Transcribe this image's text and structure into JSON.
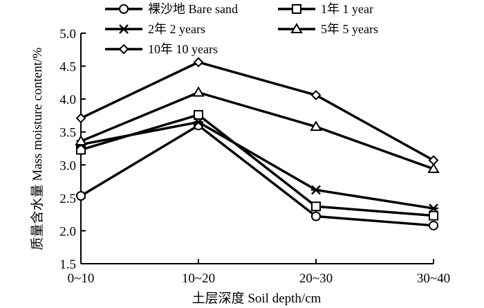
{
  "chart_data": {
    "type": "line",
    "title": "",
    "xlabel": "土层深度 Soil depth/cm",
    "ylabel": "质量含水量 Mass moisture content/%",
    "categories": [
      "0~10",
      "10~20",
      "20~30",
      "30~40"
    ],
    "ylim": [
      1.5,
      5.0
    ],
    "yticks": [
      "1.5",
      "2.0",
      "2.5",
      "3.0",
      "3.5",
      "4.0",
      "4.5",
      "5.0"
    ],
    "grid": false,
    "legend_position": "top",
    "series": [
      {
        "name": "裸沙地 Bare sand",
        "marker": "circle",
        "values": [
          2.53,
          3.6,
          2.22,
          2.08
        ]
      },
      {
        "name": "1年 1 year",
        "marker": "square",
        "values": [
          3.23,
          3.76,
          2.37,
          2.23
        ]
      },
      {
        "name": "2年 2 years",
        "marker": "asterisk",
        "values": [
          3.31,
          3.65,
          2.62,
          2.34
        ]
      },
      {
        "name": "5年 5 years",
        "marker": "triangle",
        "values": [
          3.36,
          4.1,
          3.58,
          2.94
        ]
      },
      {
        "name": "10年 10 years",
        "marker": "diamond",
        "values": [
          3.71,
          4.56,
          4.06,
          3.07
        ]
      }
    ],
    "line_color": "#000000"
  }
}
